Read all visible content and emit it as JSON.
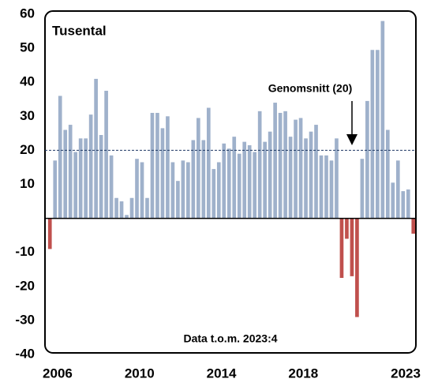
{
  "chart_data": {
    "type": "bar",
    "unit_label": "Tusental",
    "note": "Data t.o.m. 2023:4",
    "average": {
      "value": 20,
      "label": "Genomsnitt (20)"
    },
    "categories": [
      null,
      "2006",
      null,
      null,
      null,
      null,
      null,
      null,
      null,
      null,
      null,
      null,
      null,
      null,
      null,
      null,
      null,
      "2010",
      null,
      null,
      null,
      null,
      null,
      null,
      null,
      null,
      null,
      null,
      null,
      null,
      null,
      null,
      null,
      "2014",
      null,
      null,
      null,
      null,
      null,
      null,
      null,
      null,
      null,
      null,
      null,
      null,
      null,
      null,
      null,
      "2018",
      null,
      null,
      null,
      null,
      null,
      null,
      null,
      null,
      null,
      null,
      null,
      null,
      null,
      null,
      null,
      null,
      null,
      null,
      null,
      "2023",
      null,
      null
    ],
    "values": [
      -9,
      17,
      36,
      26,
      27.5,
      19.5,
      23.5,
      23.5,
      30.5,
      41,
      24.5,
      37.5,
      18.5,
      6,
      5,
      1,
      6,
      17.5,
      16.5,
      6,
      31,
      31,
      26.5,
      30,
      16.5,
      11,
      17,
      16.5,
      23,
      29.5,
      23,
      32.5,
      14.5,
      16.5,
      22,
      20.5,
      24,
      19,
      22.5,
      21.5,
      19.5,
      31.5,
      22.5,
      25.5,
      34,
      31,
      31.5,
      24,
      29,
      29.5,
      23.5,
      25.5,
      27.5,
      18.5,
      18.5,
      17,
      23.5,
      -17.5,
      -6,
      -17,
      -29,
      17.5,
      34.5,
      49.5,
      49.5,
      58,
      26,
      10.5,
      17,
      8,
      8.5,
      -4.5
    ],
    "positive_color": "#9fb1cb",
    "negative_color": "#c0504d",
    "ylim": [
      -40,
      60
    ],
    "yticks": [
      -40,
      -30,
      -20,
      -10,
      10,
      20,
      30,
      40,
      50,
      60
    ]
  }
}
